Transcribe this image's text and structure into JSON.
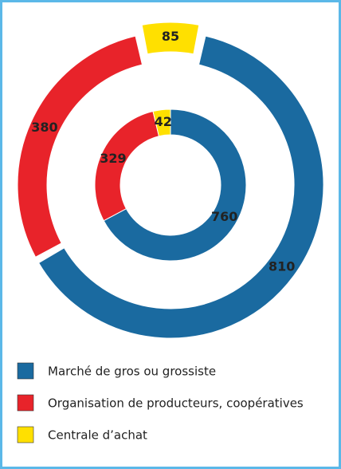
{
  "chart_data": {
    "type": "donut",
    "categories": [
      "Marché de gros ou grossiste",
      "Organisation de producteurs, coopératives",
      "Centrale d’achat"
    ],
    "colors": [
      "#1a6aa0",
      "#e8232a",
      "#ffe000"
    ],
    "series": [
      {
        "values": [
          810,
          380,
          85
        ]
      },
      {
        "values": [
          760,
          329,
          42
        ]
      }
    ],
    "legend": "bottom"
  }
}
